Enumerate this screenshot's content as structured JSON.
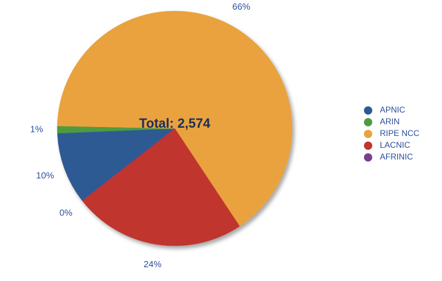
{
  "chart_data": {
    "type": "pie",
    "total_label": "Total: 2,574",
    "categories": [
      "APNIC",
      "ARIN",
      "RIPE NCC",
      "LACNIC",
      "AFRINIC"
    ],
    "values": [
      10,
      1,
      66,
      24,
      0
    ],
    "value_labels": [
      "10%",
      "1%",
      "66%",
      "24%",
      "0%"
    ],
    "colors": [
      "#2d5a93",
      "#4f9a40",
      "#e9a23d",
      "#c0352f",
      "#7b3f8c"
    ],
    "legend": "right"
  }
}
